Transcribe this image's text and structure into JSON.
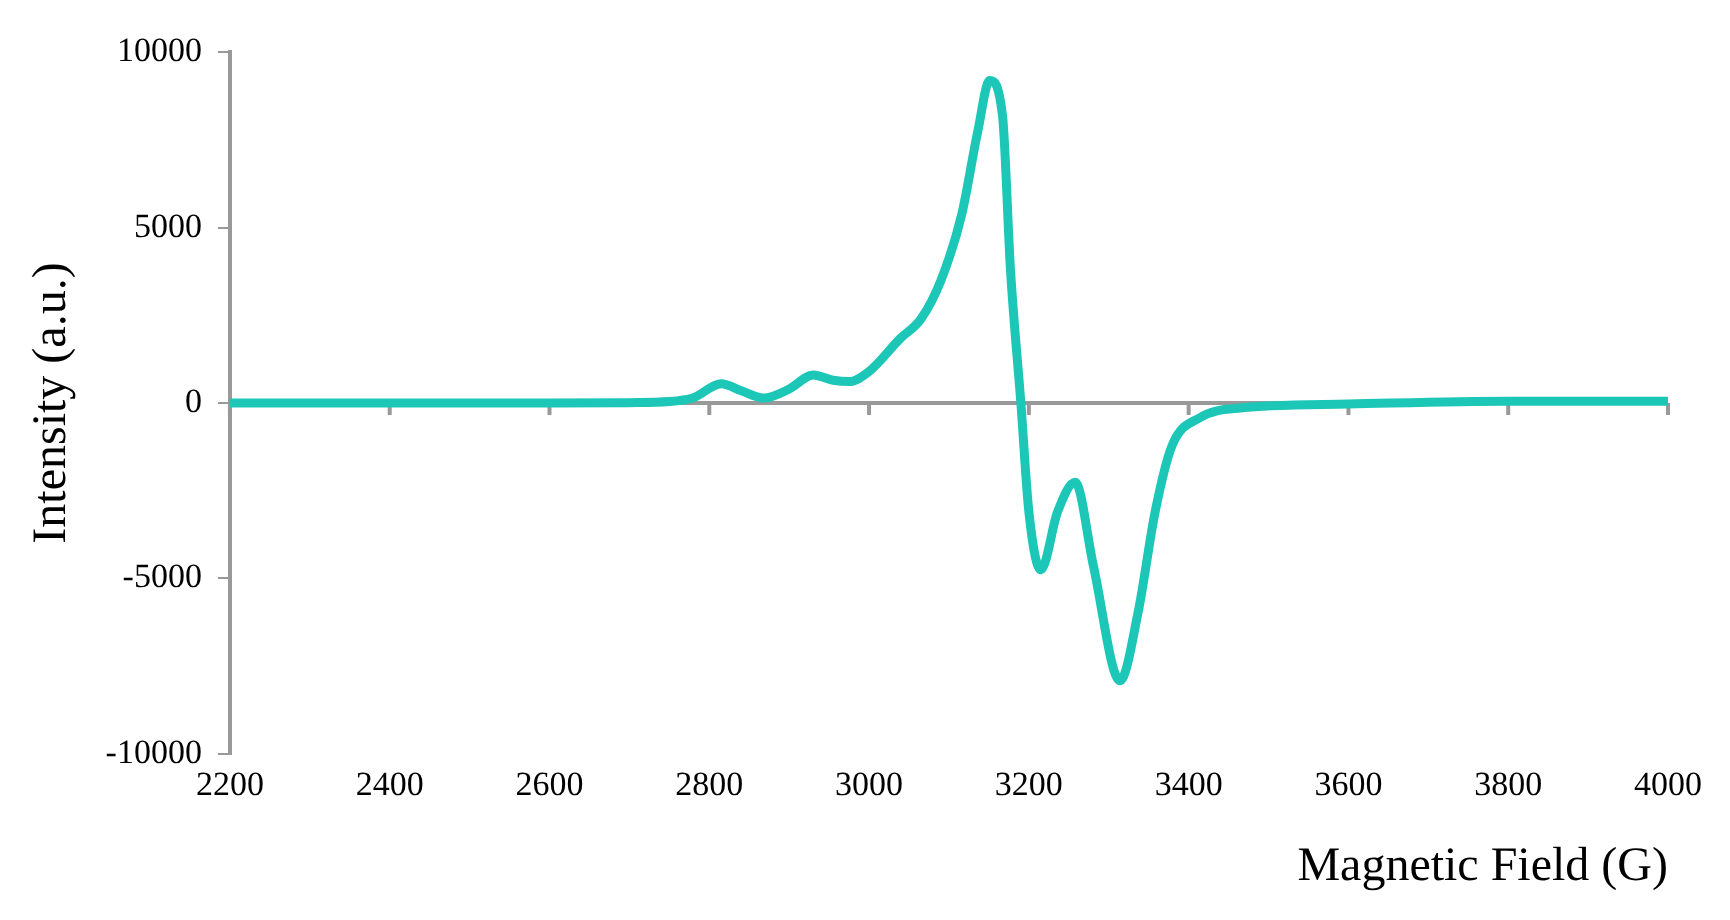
{
  "chart_data": {
    "type": "line",
    "xlabel": "Magnetic Field (G)",
    "ylabel": "Intensity (a.u.)",
    "xlim": [
      2200,
      4000
    ],
    "xticks": [
      2200,
      2400,
      2600,
      2800,
      3000,
      3200,
      3400,
      3600,
      3800,
      4000
    ],
    "ylim": [
      -10000,
      10000
    ],
    "yticks": [
      -10000,
      -5000,
      0,
      5000,
      10000
    ],
    "grid": false,
    "ref_lines": [
      {
        "axis": "y",
        "value": 0,
        "color": "#999999",
        "line_style": "solid"
      }
    ],
    "legend": false,
    "marker": "none",
    "line_style": "solid",
    "series": [
      {
        "color": "#1cc7b7",
        "x": [
          2200,
          2400,
          2600,
          2700,
          2750,
          2780,
          2815,
          2840,
          2868,
          2900,
          2930,
          2955,
          2975,
          3000,
          3039,
          3065,
          3090,
          3116,
          3136,
          3151,
          3167,
          3177,
          3190,
          3200,
          3215,
          3236,
          3258,
          3281,
          3314,
          3337,
          3358,
          3379,
          3414,
          3465,
          3600,
          3800,
          4000
        ],
        "values": [
          0,
          0,
          0,
          10,
          40,
          150,
          550,
          350,
          140,
          400,
          800,
          650,
          610,
          900,
          1840,
          2400,
          3500,
          5380,
          7740,
          9200,
          8200,
          3800,
          0,
          -3100,
          -4760,
          -3100,
          -2260,
          -4670,
          -7920,
          -5940,
          -3110,
          -1230,
          -420,
          -140,
          -30,
          50,
          50
        ]
      }
    ]
  }
}
